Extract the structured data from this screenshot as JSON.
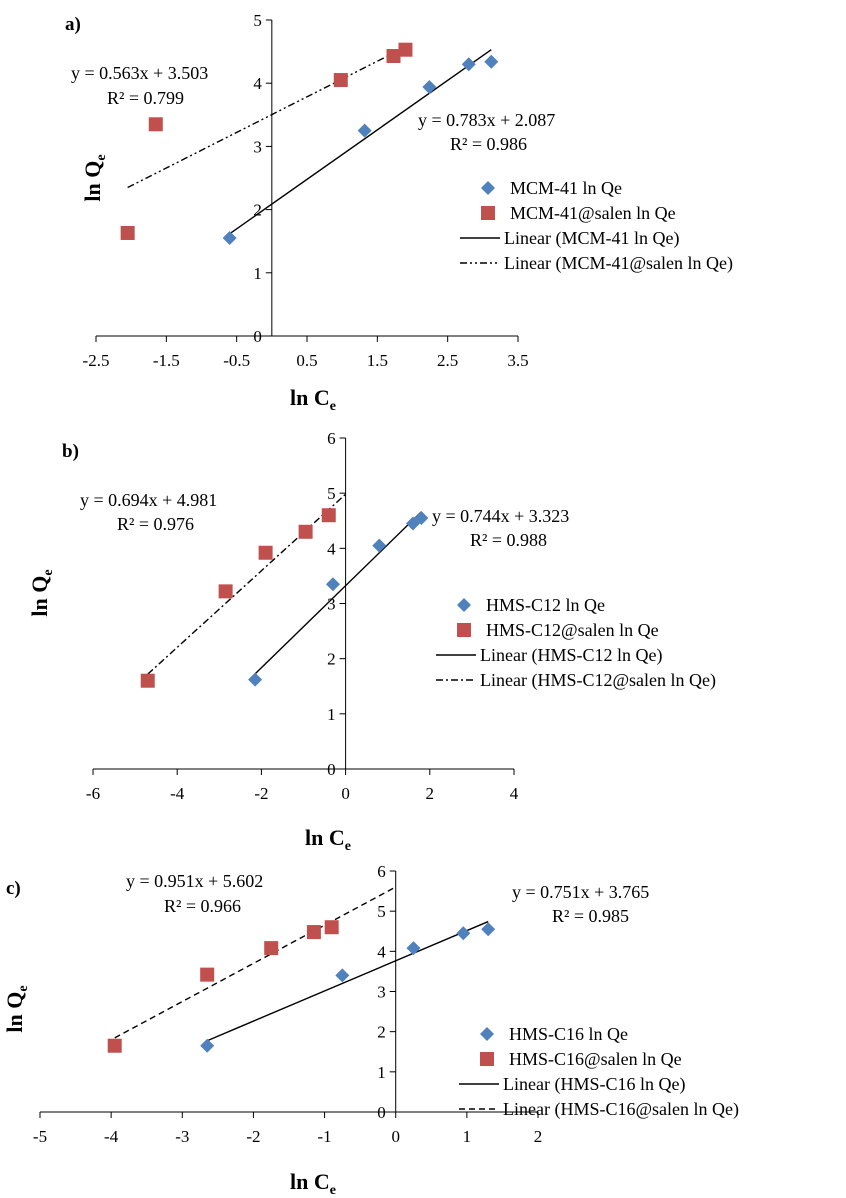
{
  "colors": {
    "series_a": "#4F81BD",
    "series_b": "#C0504D",
    "axis": "#000000"
  },
  "chart_data": [
    {
      "panel_label": "a)",
      "type": "scatter",
      "xlabel": "ln C",
      "xlabel_sub": "e",
      "ylabel": "ln Q",
      "ylabel_sub": "e",
      "xlim": [
        -2.5,
        3.5
      ],
      "ylim": [
        0,
        5
      ],
      "xticks": [
        -2.5,
        -1.5,
        -0.5,
        0.5,
        1.5,
        2.5,
        3.5
      ],
      "xtick_labels": [
        "-2.5",
        "-1.5",
        "-0.5",
        "0.5",
        "1.5",
        "2.5",
        "3.5"
      ],
      "yticks": [
        0,
        1,
        2,
        3,
        4,
        5
      ],
      "ytick_labels": [
        "0",
        "1",
        "2",
        "3",
        "4",
        "5"
      ],
      "grid": false,
      "legend_position": "right",
      "series": [
        {
          "name": "MCM-41 ln Qe",
          "marker": "diamond",
          "x": [
            -0.6,
            1.32,
            2.24,
            2.8,
            3.12
          ],
          "y": [
            1.55,
            3.25,
            3.94,
            4.3,
            4.34
          ],
          "trend": {
            "name": "Linear (MCM-41 ln Qe)",
            "slope": 0.783,
            "intercept": 2.087,
            "x_range": [
              -0.6,
              3.12
            ],
            "dash": "solid",
            "equation": "y = 0.783x + 2.087",
            "r2": "R² = 0.986"
          }
        },
        {
          "name": "MCM-41@salen ln Qe",
          "marker": "square",
          "x": [
            -2.05,
            -1.65,
            0.98,
            1.73,
            1.9
          ],
          "y": [
            1.63,
            3.35,
            4.05,
            4.43,
            4.53
          ],
          "trend": {
            "name": "Linear (MCM-41@salen ln Qe)",
            "slope": 0.563,
            "intercept": 3.503,
            "x_range": [
              -2.05,
              1.9
            ],
            "dash": "dashdotdot",
            "equation": "y = 0.563x + 3.503",
            "r2": "R² = 0.799"
          }
        }
      ]
    },
    {
      "panel_label": "b)",
      "type": "scatter",
      "xlabel": "ln C",
      "xlabel_sub": "e",
      "ylabel": "ln Q",
      "ylabel_sub": "e",
      "xlim": [
        -6,
        4
      ],
      "ylim": [
        0,
        6
      ],
      "xticks": [
        -6,
        -4,
        -2,
        0,
        2,
        4
      ],
      "xtick_labels": [
        "-6",
        "-4",
        "-2",
        "0",
        "2",
        "4"
      ],
      "yticks": [
        0,
        1,
        2,
        3,
        4,
        5,
        6
      ],
      "ytick_labels": [
        "0",
        "1",
        "2",
        "3",
        "4",
        "5",
        "6"
      ],
      "grid": false,
      "legend_position": "right",
      "series": [
        {
          "name": "HMS-C12 ln Qe",
          "marker": "diamond",
          "x": [
            -2.15,
            -0.3,
            0.8,
            1.6,
            1.8
          ],
          "y": [
            1.62,
            3.35,
            4.05,
            4.45,
            4.55
          ],
          "trend": {
            "name": "Linear (HMS-C12 ln Qe)",
            "slope": 0.744,
            "intercept": 3.323,
            "x_range": [
              -2.15,
              1.8
            ],
            "dash": "solid",
            "equation": "y = 0.744x + 3.323",
            "r2": "R² = 0.988"
          }
        },
        {
          "name": "HMS-C12@salen ln Qe",
          "marker": "square",
          "x": [
            -4.7,
            -2.85,
            -1.9,
            -0.95,
            -0.4
          ],
          "y": [
            1.6,
            3.22,
            3.92,
            4.3,
            4.6
          ],
          "trend": {
            "name": "Linear (HMS-C12@salen ln Qe)",
            "slope": 0.694,
            "intercept": 4.981,
            "x_range": [
              -4.7,
              0
            ],
            "dash": "dashdot",
            "equation": "y = 0.694x + 4.981",
            "r2": "R² = 0.976"
          }
        }
      ]
    },
    {
      "panel_label": "c)",
      "type": "scatter",
      "xlabel": "ln C",
      "xlabel_sub": "e",
      "ylabel": "ln Q",
      "ylabel_sub": "e",
      "xlim": [
        -5,
        2
      ],
      "ylim": [
        0,
        6
      ],
      "xticks": [
        -5,
        -4,
        -3,
        -2,
        -1,
        0,
        1,
        2
      ],
      "xtick_labels": [
        "-5",
        "-4",
        "-3",
        "-2",
        "-1",
        "0",
        "1",
        "2"
      ],
      "yticks": [
        0,
        1,
        2,
        3,
        4,
        5,
        6
      ],
      "ytick_labels": [
        "0",
        "1",
        "2",
        "3",
        "4",
        "5",
        "6"
      ],
      "grid": false,
      "legend_position": "right",
      "series": [
        {
          "name": "HMS-C16 ln Qe",
          "marker": "diamond",
          "x": [
            -2.65,
            -0.75,
            0.25,
            0.95,
            1.3
          ],
          "y": [
            1.65,
            3.4,
            4.08,
            4.45,
            4.55
          ],
          "trend": {
            "name": "Linear (HMS-C16 ln Qe)",
            "slope": 0.751,
            "intercept": 3.765,
            "x_range": [
              -2.65,
              1.3
            ],
            "dash": "solid",
            "equation": "y = 0.751x + 3.765",
            "r2": "R² = 0.985"
          }
        },
        {
          "name": "HMS-C16@salen ln Qe",
          "marker": "square",
          "x": [
            -3.95,
            -2.65,
            -1.75,
            -1.15,
            -0.9
          ],
          "y": [
            1.65,
            3.42,
            4.08,
            4.48,
            4.6
          ],
          "trend": {
            "name": "Linear (HMS-C16@salen ln Qe)",
            "slope": 0.951,
            "intercept": 5.602,
            "x_range": [
              -3.95,
              0
            ],
            "dash": "dashed",
            "equation": "y = 0.951x + 5.602",
            "r2": "R² = 0.966"
          }
        }
      ]
    }
  ]
}
